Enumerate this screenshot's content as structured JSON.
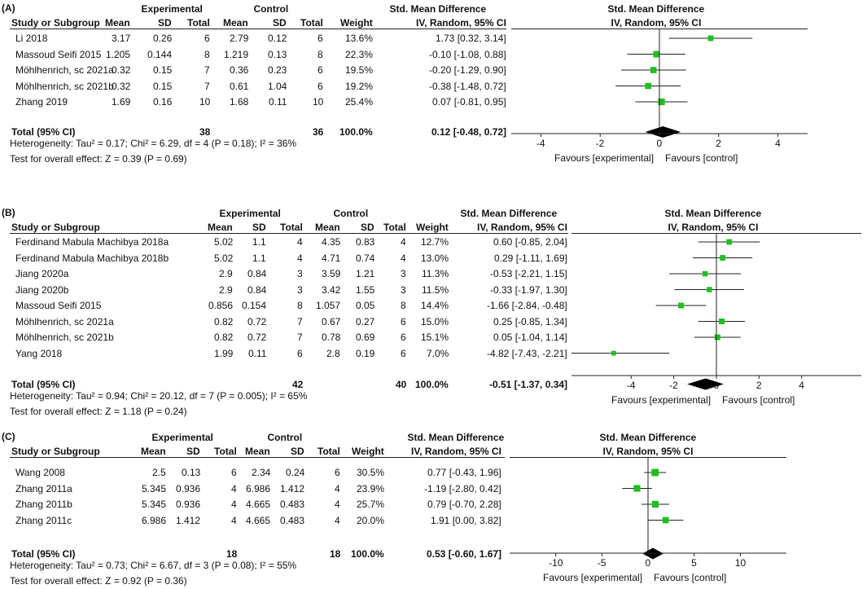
{
  "chart_data": [
    {
      "type": "forest",
      "panel_label": "(A)",
      "headers": {
        "group_experimental": "Experimental",
        "group_control": "Control",
        "study": "Study or Subgroup",
        "mean": "Mean",
        "sd": "SD",
        "total": "Total",
        "weight": "Weight",
        "effect_title": "Std. Mean Difference",
        "effect_sub": "IV, Random, 95% CI"
      },
      "studies": [
        {
          "name": "Li 2018",
          "exp_mean": "3.17",
          "exp_sd": "0.26",
          "exp_total": "6",
          "ctl_mean": "2.79",
          "ctl_sd": "0.12",
          "ctl_total": "6",
          "weight": "13.6%",
          "ci_text": "1.73 [0.32, 3.14]",
          "est": 1.73,
          "lo": 0.32,
          "hi": 3.14,
          "w": 13.6
        },
        {
          "name": "Massoud Seifi 2015",
          "exp_mean": "1.205",
          "exp_sd": "0.144",
          "exp_total": "8",
          "ctl_mean": "1.219",
          "ctl_sd": "0.13",
          "ctl_total": "8",
          "weight": "22.3%",
          "ci_text": "-0.10 [-1.08, 0.88]",
          "est": -0.1,
          "lo": -1.08,
          "hi": 0.88,
          "w": 22.3
        },
        {
          "name": "Möhlhenrich, sc 2021a",
          "exp_mean": "0.32",
          "exp_sd": "0.15",
          "exp_total": "7",
          "ctl_mean": "0.36",
          "ctl_sd": "0.23",
          "ctl_total": "6",
          "weight": "19.5%",
          "ci_text": "-0.20 [-1.29, 0.90]",
          "est": -0.2,
          "lo": -1.29,
          "hi": 0.9,
          "w": 19.5
        },
        {
          "name": "Möhlhenrich, sc 2021b",
          "exp_mean": "0.32",
          "exp_sd": "0.15",
          "exp_total": "7",
          "ctl_mean": "0.61",
          "ctl_sd": "1.04",
          "ctl_total": "6",
          "weight": "19.2%",
          "ci_text": "-0.38 [-1.48, 0.72]",
          "est": -0.38,
          "lo": -1.48,
          "hi": 0.72,
          "w": 19.2
        },
        {
          "name": "Zhang 2019",
          "exp_mean": "1.69",
          "exp_sd": "0.16",
          "exp_total": "10",
          "ctl_mean": "1.68",
          "ctl_sd": "0.11",
          "ctl_total": "10",
          "weight": "25.4%",
          "ci_text": "0.07 [-0.81, 0.95]",
          "est": 0.07,
          "lo": -0.81,
          "hi": 0.95,
          "w": 25.4
        }
      ],
      "total": {
        "label": "Total (95% CI)",
        "exp_total": "38",
        "ctl_total": "36",
        "weight": "100.0%",
        "ci_text": "0.12 [-0.48, 0.72]",
        "est": 0.12,
        "lo": -0.48,
        "hi": 0.72
      },
      "heterogeneity": "Heterogeneity: Tau² = 0.17; Chi² = 6.29, df = 4 (P = 0.18); I² = 36%",
      "overall_effect": "Test for overall effect: Z = 0.39 (P = 0.69)",
      "axis": {
        "min": -5,
        "max": 5,
        "ticks": [
          -4,
          -2,
          0,
          2,
          4
        ],
        "tick_labels": [
          "-4",
          "-2",
          "0",
          "2",
          "4"
        ]
      },
      "favours_left": "Favours [experimental]",
      "favours_right": "Favours [control]"
    },
    {
      "type": "forest",
      "panel_label": "(B)",
      "headers": {
        "group_experimental": "Experimental",
        "group_control": "Control",
        "study": "Study or Subgroup",
        "mean": "Mean",
        "sd": "SD",
        "total": "Total",
        "weight": "Weight",
        "effect_title": "Std. Mean Difference",
        "effect_sub": "IV, Random, 95% CI"
      },
      "studies": [
        {
          "name": "Ferdinand Mabula Machibya 2018a",
          "exp_mean": "5.02",
          "exp_sd": "1.1",
          "exp_total": "4",
          "ctl_mean": "4.35",
          "ctl_sd": "0.83",
          "ctl_total": "4",
          "weight": "12.7%",
          "ci_text": "0.60 [-0.85, 2.04]",
          "est": 0.6,
          "lo": -0.85,
          "hi": 2.04,
          "w": 12.7
        },
        {
          "name": "Ferdinand Mabula Machibya 2018b",
          "exp_mean": "5.02",
          "exp_sd": "1.1",
          "exp_total": "4",
          "ctl_mean": "4.71",
          "ctl_sd": "0.74",
          "ctl_total": "4",
          "weight": "13.0%",
          "ci_text": "0.29 [-1.11, 1.69]",
          "est": 0.29,
          "lo": -1.11,
          "hi": 1.69,
          "w": 13.0
        },
        {
          "name": "Jiang 2020a",
          "exp_mean": "2.9",
          "exp_sd": "0.84",
          "exp_total": "3",
          "ctl_mean": "3.59",
          "ctl_sd": "1.21",
          "ctl_total": "3",
          "weight": "11.3%",
          "ci_text": "-0.53 [-2.21, 1.15]",
          "est": -0.53,
          "lo": -2.21,
          "hi": 1.15,
          "w": 11.3
        },
        {
          "name": "Jiang 2020b",
          "exp_mean": "2.9",
          "exp_sd": "0.84",
          "exp_total": "3",
          "ctl_mean": "3.42",
          "ctl_sd": "1.55",
          "ctl_total": "3",
          "weight": "11.5%",
          "ci_text": "-0.33 [-1.97, 1.30]",
          "est": -0.33,
          "lo": -1.97,
          "hi": 1.3,
          "w": 11.5
        },
        {
          "name": "Massoud Seifi 2015",
          "exp_mean": "0.856",
          "exp_sd": "0.154",
          "exp_total": "8",
          "ctl_mean": "1.057",
          "ctl_sd": "0.05",
          "ctl_total": "8",
          "weight": "14.4%",
          "ci_text": "-1.66 [-2.84, -0.48]",
          "est": -1.66,
          "lo": -2.84,
          "hi": -0.48,
          "w": 14.4
        },
        {
          "name": "Möhlhenrich, sc 2021a",
          "exp_mean": "0.82",
          "exp_sd": "0.72",
          "exp_total": "7",
          "ctl_mean": "0.67",
          "ctl_sd": "0.27",
          "ctl_total": "6",
          "weight": "15.0%",
          "ci_text": "0.25 [-0.85, 1.34]",
          "est": 0.25,
          "lo": -0.85,
          "hi": 1.34,
          "w": 15.0
        },
        {
          "name": "Möhlhenrich, sc 2021b",
          "exp_mean": "0.82",
          "exp_sd": "0.72",
          "exp_total": "7",
          "ctl_mean": "0.78",
          "ctl_sd": "0.69",
          "ctl_total": "6",
          "weight": "15.1%",
          "ci_text": "0.05 [-1.04, 1.14]",
          "est": 0.05,
          "lo": -1.04,
          "hi": 1.14,
          "w": 15.1
        },
        {
          "name": "Yang 2018",
          "exp_mean": "1.99",
          "exp_sd": "0.11",
          "exp_total": "6",
          "ctl_mean": "2.8",
          "ctl_sd": "0.19",
          "ctl_total": "6",
          "weight": "7.0%",
          "ci_text": "-4.82 [-7.43, -2.21]",
          "est": -4.82,
          "lo": -7.43,
          "hi": -2.21,
          "w": 7.0
        }
      ],
      "total": {
        "label": "Total (95% CI)",
        "exp_total": "42",
        "ctl_total": "40",
        "weight": "100.0%",
        "ci_text": "-0.51 [-1.37, 0.34]",
        "est": -0.51,
        "lo": -1.37,
        "hi": 0.34
      },
      "heterogeneity": "Heterogeneity: Tau² = 0.94; Chi² = 20.12, df = 7 (P = 0.005); I² = 65%",
      "overall_effect": "Test for overall effect: Z = 1.18 (P = 0.24)",
      "axis": {
        "min": -6.8,
        "max": 6.8,
        "ticks": [
          -4,
          -2,
          0,
          2,
          4
        ],
        "tick_labels": [
          "-4",
          "-2",
          "0",
          "2",
          "4"
        ]
      },
      "favours_left": "Favours [experimental]",
      "favours_right": "Favours [control]"
    },
    {
      "type": "forest",
      "panel_label": "(C)",
      "headers": {
        "group_experimental": "Experimental",
        "group_control": "Control",
        "study": "Study or Subgroup",
        "mean": "Mean",
        "sd": "SD",
        "total": "Total",
        "weight": "Weight",
        "effect_title": "Std. Mean Difference",
        "effect_sub": "IV, Random, 95% CI"
      },
      "studies": [
        {
          "name": "Wang 2008",
          "exp_mean": "2.5",
          "exp_sd": "0.13",
          "exp_total": "6",
          "ctl_mean": "2.34",
          "ctl_sd": "0.24",
          "ctl_total": "6",
          "weight": "30.5%",
          "ci_text": "0.77 [-0.43, 1.96]",
          "est": 0.77,
          "lo": -0.43,
          "hi": 1.96,
          "w": 30.5
        },
        {
          "name": "Zhang 2011a",
          "exp_mean": "5.345",
          "exp_sd": "0.936",
          "exp_total": "4",
          "ctl_mean": "6.986",
          "ctl_sd": "1.412",
          "ctl_total": "4",
          "weight": "23.9%",
          "ci_text": "-1.19 [-2.80, 0.42]",
          "est": -1.19,
          "lo": -2.8,
          "hi": 0.42,
          "w": 23.9
        },
        {
          "name": "Zhang 2011b",
          "exp_mean": "5.345",
          "exp_sd": "0.936",
          "exp_total": "4",
          "ctl_mean": "4.665",
          "ctl_sd": "0.483",
          "ctl_total": "4",
          "weight": "25.7%",
          "ci_text": "0.79 [-0.70, 2.28]",
          "est": 0.79,
          "lo": -0.7,
          "hi": 2.28,
          "w": 25.7
        },
        {
          "name": "Zhang 2011c",
          "exp_mean": "6.986",
          "exp_sd": "1.412",
          "exp_total": "4",
          "ctl_mean": "4.665",
          "ctl_sd": "0.483",
          "ctl_total": "4",
          "weight": "20.0%",
          "ci_text": "1.91 [0.00, 3.82]",
          "est": 1.91,
          "lo": 0.0,
          "hi": 3.82,
          "w": 20.0
        }
      ],
      "total": {
        "label": "Total (95% CI)",
        "exp_total": "18",
        "ctl_total": "18",
        "weight": "100.0%",
        "ci_text": "0.53 [-0.60, 1.67]",
        "est": 0.53,
        "lo": -0.6,
        "hi": 1.67
      },
      "heterogeneity": "Heterogeneity: Tau² = 0.73; Chi² = 6.67, df = 3 (P = 0.08); I² = 55%",
      "overall_effect": "Test for overall effect: Z = 0.92 (P = 0.36)",
      "axis": {
        "min": -15,
        "max": 15,
        "ticks": [
          -10,
          -5,
          0,
          5,
          10
        ],
        "tick_labels": [
          "-10",
          "-5",
          "0",
          "5",
          "10"
        ]
      },
      "favours_left": "Favours [experimental]",
      "favours_right": "Favours [control]"
    }
  ],
  "colors": {
    "marker": "#1fbf1f",
    "diamond": "#000000",
    "line": "#222222"
  }
}
